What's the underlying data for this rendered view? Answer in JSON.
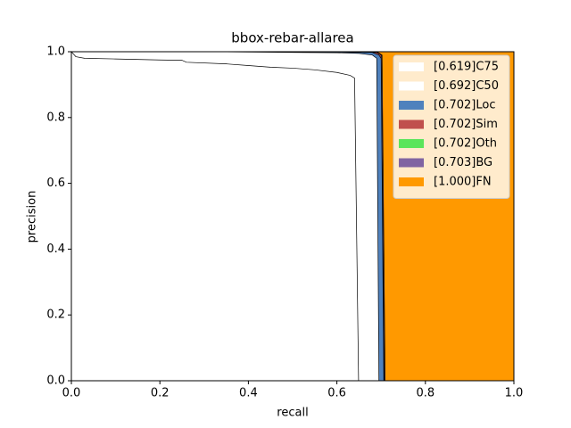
{
  "chart_data": {
    "type": "area",
    "title": "bbox-rebar-allarea",
    "xlabel": "recall",
    "ylabel": "precision",
    "xlim": [
      0,
      1
    ],
    "ylim": [
      0,
      1
    ],
    "xticks": [
      {
        "value": 0,
        "label": "0.0"
      },
      0.2,
      0.4,
      0.6,
      0.8,
      {
        "value": 1,
        "label": "1.0"
      }
    ],
    "yticks": [
      {
        "value": 0,
        "label": "0.0"
      },
      0.2,
      0.4,
      0.6,
      0.8,
      {
        "value": 1,
        "label": "1.0"
      }
    ],
    "legend": "upper right",
    "series": [
      {
        "name": "[1.000]FN",
        "color": "#ff9900",
        "x": [
          0,
          1
        ],
        "values": [
          1,
          1
        ]
      },
      {
        "name": "[0.703]BG",
        "color": "#8064a2",
        "x": [
          0,
          0.69,
          0.702,
          0.709
        ],
        "values": [
          1,
          1,
          0.99,
          0
        ]
      },
      {
        "name": "[0.702]Oth",
        "color": "#5be55b",
        "x": [
          0,
          0.5,
          0.69,
          0.7,
          0.707
        ],
        "values": [
          1,
          1,
          0.998,
          0.99,
          0
        ]
      },
      {
        "name": "[0.702]Sim",
        "color": "#c0504d",
        "x": [
          0,
          0.5,
          0.69,
          0.7,
          0.707
        ],
        "values": [
          1,
          1,
          0.998,
          0.99,
          0
        ]
      },
      {
        "name": "[0.702]Loc",
        "color": "#4f81bd",
        "x": [
          0,
          0.5,
          0.68,
          0.695,
          0.7,
          0.706
        ],
        "values": [
          1,
          1,
          0.998,
          0.99,
          0.98,
          0
        ]
      },
      {
        "name": "[0.692]C50",
        "color": "#ffffff",
        "x": [
          0,
          0.3,
          0.5,
          0.6,
          0.65,
          0.68,
          0.69,
          0.695
        ],
        "values": [
          1,
          1,
          0.998,
          0.997,
          0.995,
          0.99,
          0.98,
          0
        ]
      },
      {
        "name": "[0.619]C75",
        "color": "#ffffff",
        "x": [
          0,
          0.01,
          0.03,
          0.1,
          0.2,
          0.25,
          0.26,
          0.35,
          0.4,
          0.45,
          0.5,
          0.55,
          0.6,
          0.63,
          0.64,
          0.649
        ],
        "values": [
          1,
          0.985,
          0.98,
          0.978,
          0.975,
          0.974,
          0.968,
          0.963,
          0.958,
          0.953,
          0.95,
          0.945,
          0.937,
          0.928,
          0.92,
          0
        ]
      }
    ]
  }
}
